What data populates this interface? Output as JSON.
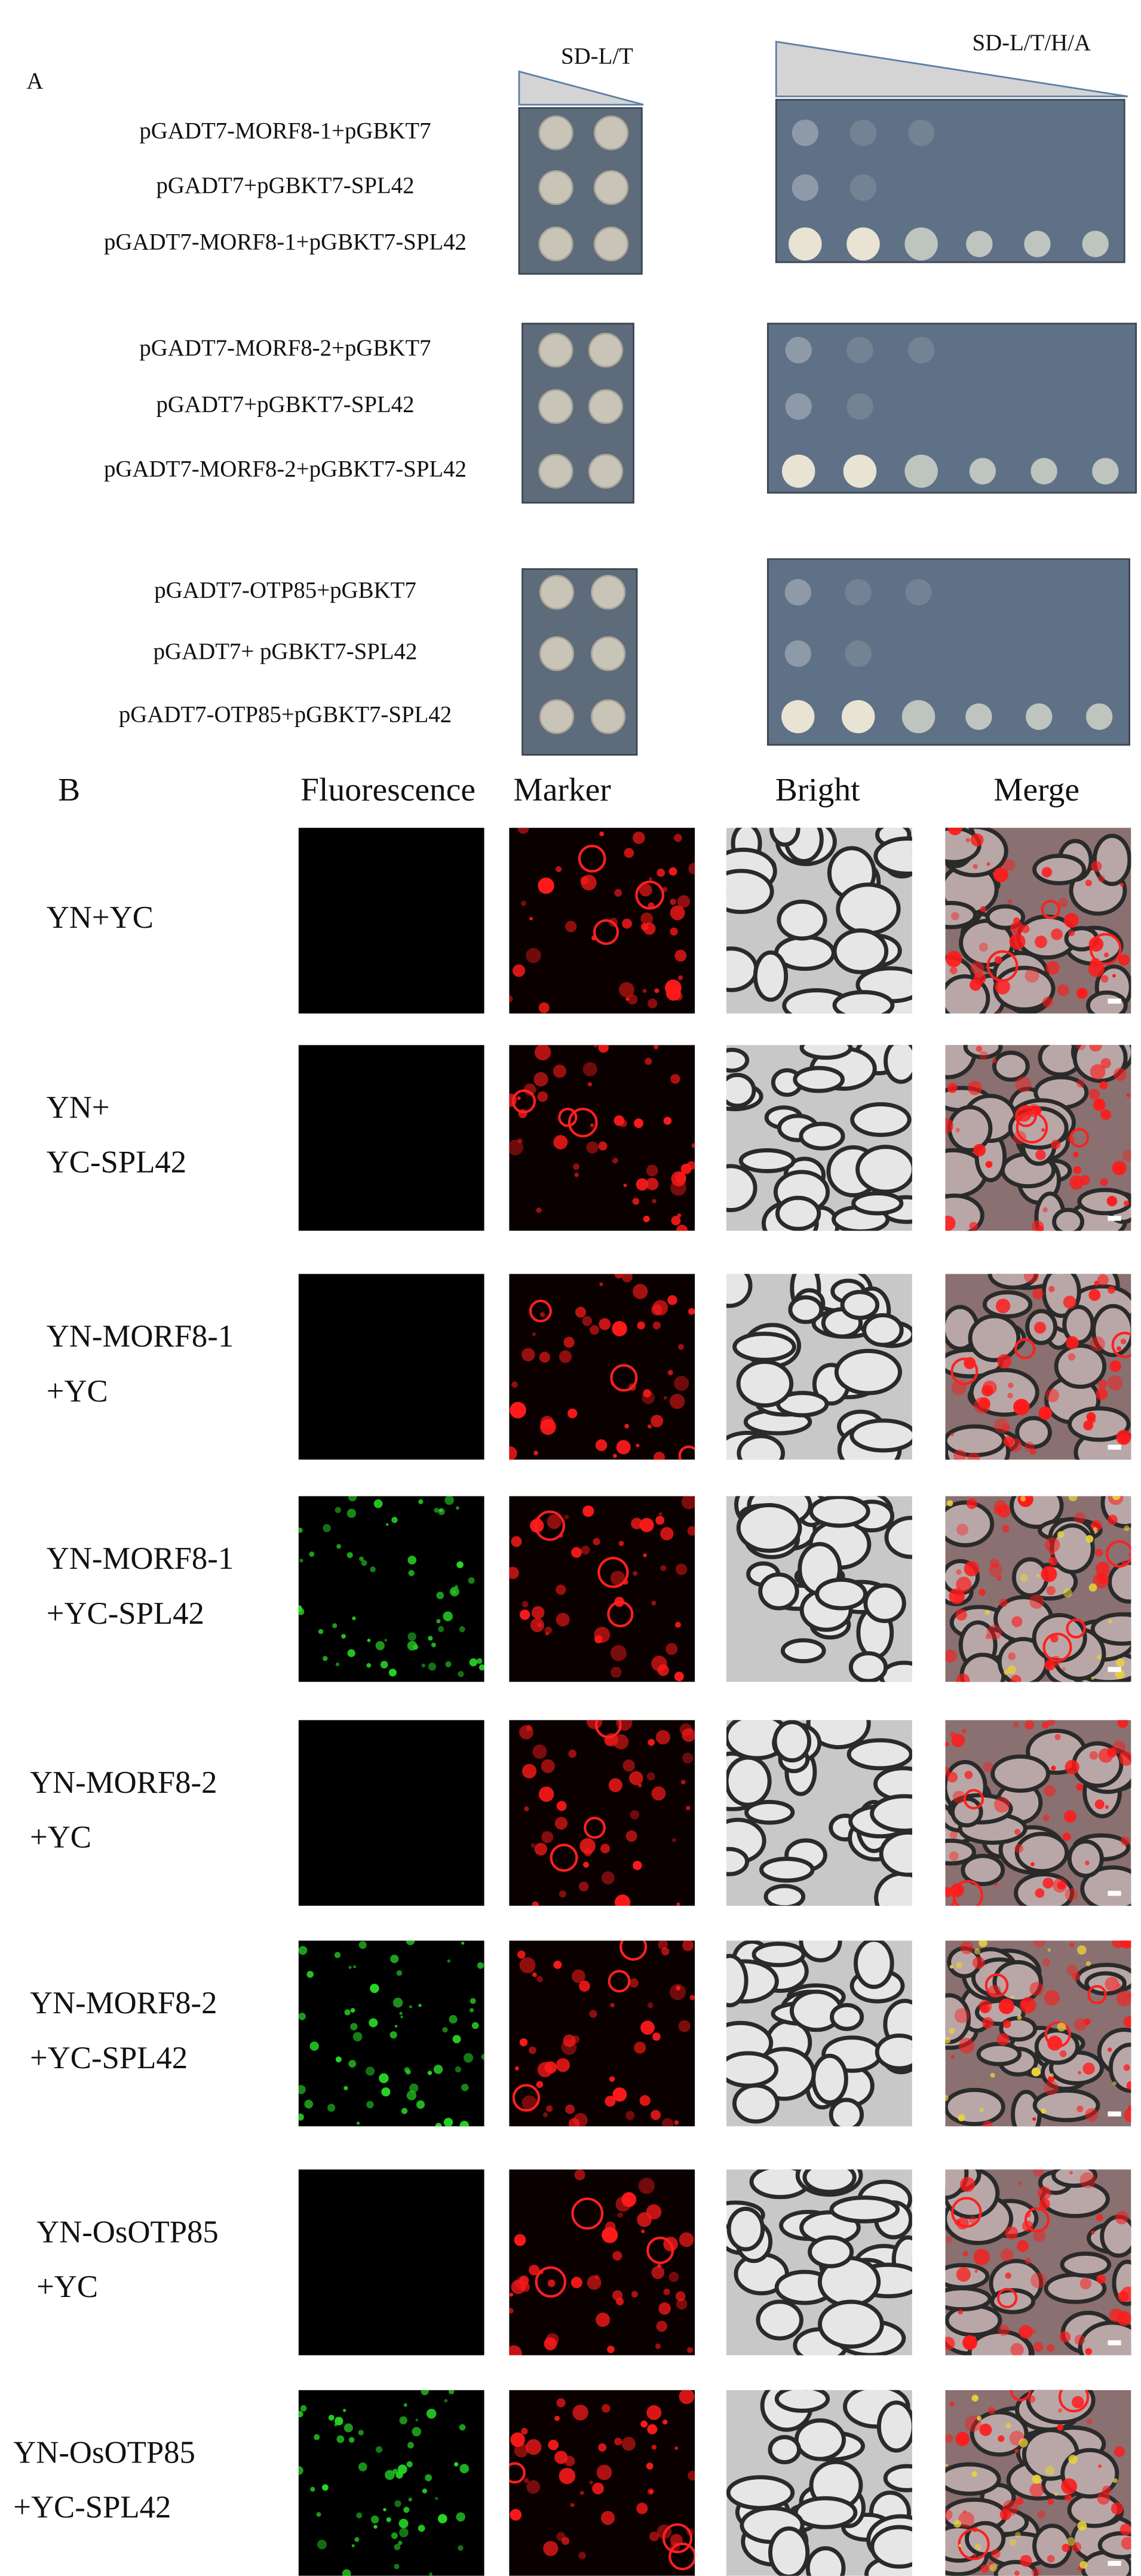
{
  "panel_a": {
    "label": "A",
    "media": [
      "SD-L/T",
      "SD-L/T/H/A"
    ],
    "groups": [
      {
        "rows": [
          "pGADT7-MORF8-1+pGBKT7",
          "pGADT7+pGBKT7-SPL42",
          "pGADT7-MORF8-1+pGBKT7-SPL42"
        ]
      },
      {
        "rows": [
          "pGADT7-MORF8-2+pGBKT7",
          "pGADT7+pGBKT7-SPL42",
          "pGADT7-MORF8-2+pGBKT7-SPL42"
        ]
      },
      {
        "rows": [
          "pGADT7-OTP85+pGBKT7",
          "pGADT7+ pGBKT7-SPL42",
          "pGADT7-OTP85+pGBKT7-SPL42"
        ]
      }
    ]
  },
  "panel_b": {
    "label": "B",
    "columns": [
      "Fluorescence",
      "Marker",
      "Bright",
      "Merge"
    ],
    "rows": [
      {
        "lines": [
          "YN+YC"
        ]
      },
      {
        "lines": [
          "YN+",
          "YC-SPL42"
        ]
      },
      {
        "lines": [
          "YN-MORF8-1",
          "+YC"
        ]
      },
      {
        "lines": [
          "YN-MORF8-1",
          "+YC-SPL42"
        ]
      },
      {
        "lines": [
          "YN-MORF8-2",
          "+YC"
        ]
      },
      {
        "lines": [
          "YN-MORF8-2",
          "+YC-SPL42"
        ]
      },
      {
        "lines": [
          "YN-OsOTP85",
          "+YC"
        ]
      },
      {
        "lines": [
          "YN-OsOTP85",
          "+YC-SPL42"
        ]
      }
    ]
  }
}
